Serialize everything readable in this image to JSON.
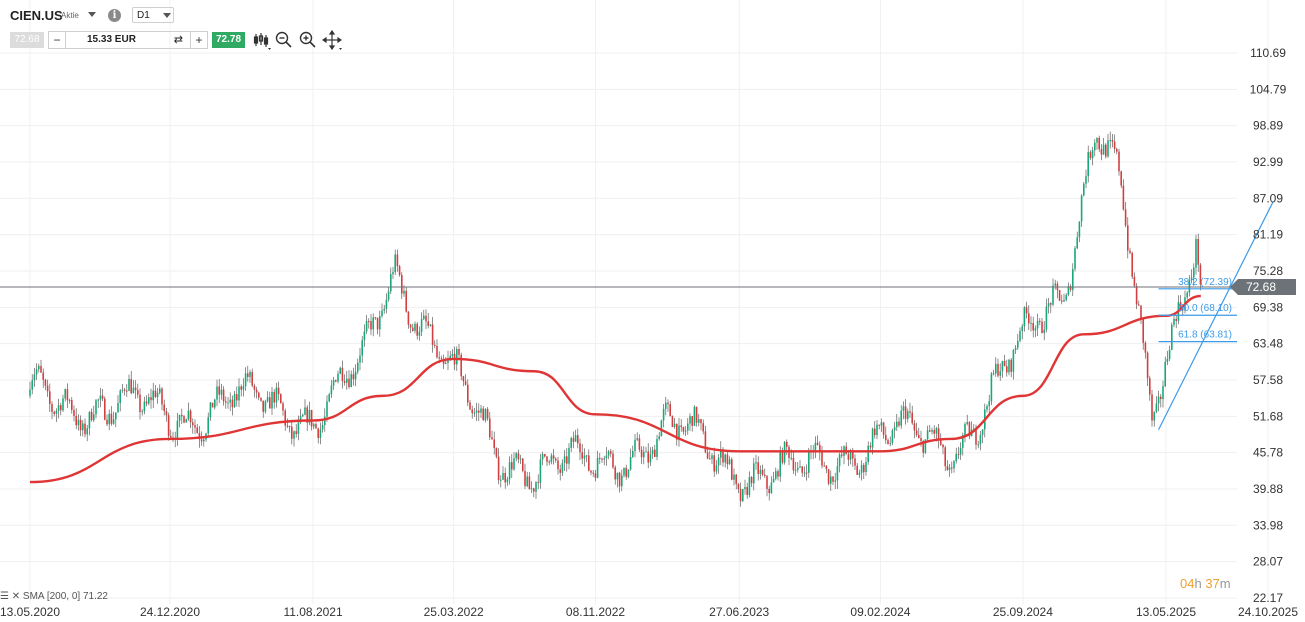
{
  "instrument": {
    "symbol": "CIEN.US",
    "asset_type": "Aktie",
    "timeframe": "D1"
  },
  "trade_panel": {
    "sell_price": "72.68",
    "quantity": "15.33 EUR",
    "buy_price": "72.78"
  },
  "tools": [
    "candles-icon",
    "zoom-out-icon",
    "zoom-in-icon",
    "crosshair-move-icon"
  ],
  "current_price": "72.68",
  "timer": {
    "hours": "04",
    "h": "h",
    "minutes": "37",
    "m": "m"
  },
  "indicator_legend": "SMA [200, 0] 71.22",
  "colors": {
    "up": "#1aa87a",
    "down": "#d33f3f",
    "sma": "#e03535",
    "fib": "#3d9be9",
    "price_line": "#6d7278",
    "buy": "#2eaa63",
    "timer": "#f0a030"
  },
  "chart_data": {
    "type": "candlestick",
    "y_axis_labels": [
      "110.69",
      "104.79",
      "98.89",
      "92.99",
      "87.09",
      "81.19",
      "75.28",
      "69.38",
      "63.48",
      "57.58",
      "51.68",
      "45.78",
      "39.88",
      "33.98",
      "28.07",
      "22.17"
    ],
    "x_axis_labels": [
      "13.05.2020",
      "24.12.2020",
      "11.08.2021",
      "25.03.2022",
      "08.11.2022",
      "27.06.2023",
      "09.02.2024",
      "25.09.2024",
      "13.05.2025",
      "24.10.2025"
    ],
    "price_path": [
      [
        "13.05.2020",
        55
      ],
      [
        "24.12.2020",
        52
      ],
      [
        "01.04.2021",
        54
      ],
      [
        "11.08.2021",
        52
      ],
      [
        "01.11.2021",
        60
      ],
      [
        "20.12.2021",
        76
      ],
      [
        "25.03.2022",
        58
      ],
      [
        "01.06.2022",
        45
      ],
      [
        "08.11.2022",
        43
      ],
      [
        "01.03.2023",
        50
      ],
      [
        "27.06.2023",
        43
      ],
      [
        "09.10.2023",
        42
      ],
      [
        "09.02.2024",
        49
      ],
      [
        "01.06.2024",
        46
      ],
      [
        "25.09.2024",
        63
      ],
      [
        "01.12.2024",
        73
      ],
      [
        "20.01.2025",
        100
      ],
      [
        "01.03.2025",
        88
      ],
      [
        "20.04.2025",
        50
      ],
      [
        "13.05.2025",
        62
      ],
      [
        "01.07.2025",
        82
      ],
      [
        "08.07.2025",
        72.68
      ]
    ],
    "sma_200": {
      "name": "SMA [200, 0]",
      "last": 71.22,
      "path": [
        [
          "13.05.2020",
          41
        ],
        [
          "24.12.2020",
          48
        ],
        [
          "11.08.2021",
          51
        ],
        [
          "01.12.2021",
          55
        ],
        [
          "25.03.2022",
          61
        ],
        [
          "01.08.2022",
          59
        ],
        [
          "08.11.2022",
          52
        ],
        [
          "27.06.2023",
          46
        ],
        [
          "09.02.2024",
          46
        ],
        [
          "01.06.2024",
          48
        ],
        [
          "25.09.2024",
          55
        ],
        [
          "01.01.2025",
          65
        ],
        [
          "13.05.2025",
          68
        ],
        [
          "08.07.2025",
          71.22
        ]
      ]
    },
    "fibonacci": [
      {
        "label": "38.2 (72.39)",
        "value": 72.39
      },
      {
        "label": "50.0 (68.10)",
        "value": 68.1
      },
      {
        "label": "61.8 (63.81)",
        "value": 63.81
      }
    ],
    "trendline": {
      "from": [
        "01.05.2025",
        49.5
      ],
      "to": [
        "01.11.2025",
        86.5
      ]
    }
  }
}
